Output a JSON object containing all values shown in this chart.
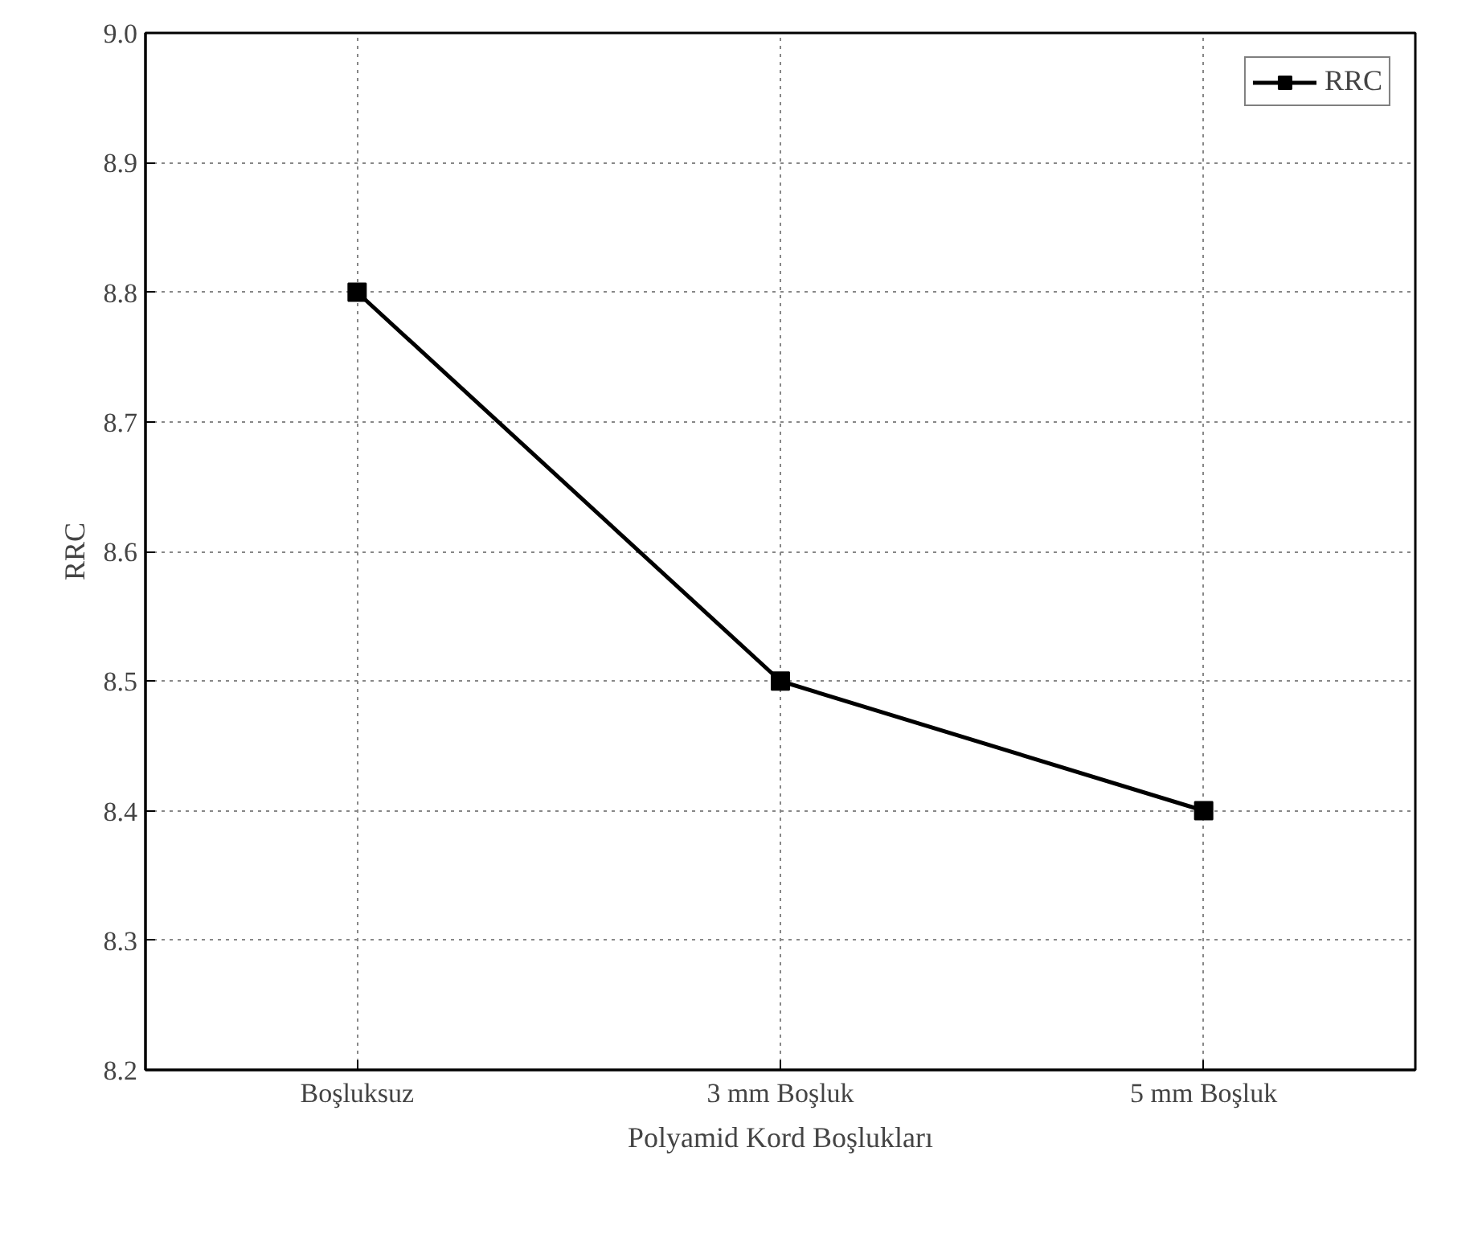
{
  "chart_data": {
    "type": "line",
    "xlabel": "Polyamid Kord Boşlukları",
    "ylabel": "RRC",
    "categories": [
      "Boşluksuz",
      "3 mm Boşluk",
      "5 mm Boşluk"
    ],
    "series": [
      {
        "name": "RRC",
        "color": "#000000",
        "values": [
          8.8,
          8.5,
          8.4
        ]
      }
    ],
    "ylim": [
      8.2,
      9.0
    ],
    "yticks": [
      8.2,
      8.3,
      8.4,
      8.5,
      8.6,
      8.7,
      8.8,
      8.9,
      {
        "value": 9.0,
        "label": "9.0"
      }
    ],
    "grid": true,
    "legend": "top right",
    "marker": "square",
    "line_style": "solid"
  }
}
